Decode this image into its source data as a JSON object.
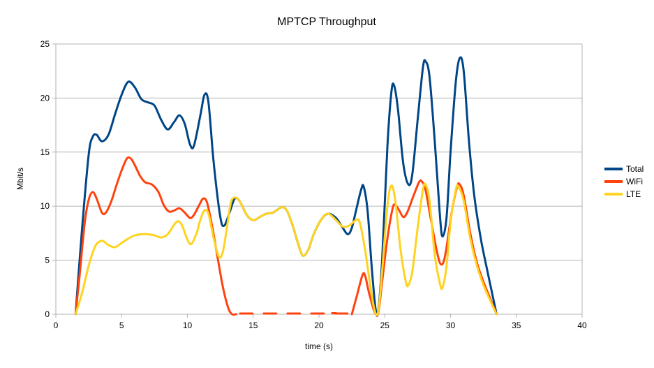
{
  "chart_data": {
    "type": "line",
    "title": "MPTCP Throughput",
    "xlabel": "time (s)",
    "ylabel": "Mbit/s",
    "xlim": [
      0,
      40
    ],
    "ylim": [
      0,
      25
    ],
    "xticks": [
      0,
      5,
      10,
      15,
      20,
      25,
      30,
      35,
      40
    ],
    "yticks": [
      0,
      5,
      10,
      15,
      20,
      25
    ],
    "grid": "horizontal",
    "legend_position": "right",
    "series": [
      {
        "name": "Total",
        "color": "#004586",
        "points": [
          [
            1.5,
            0
          ],
          [
            2.0,
            8
          ],
          [
            2.5,
            14.8
          ],
          [
            2.8,
            16.4
          ],
          [
            3.1,
            16.6
          ],
          [
            3.5,
            16.0
          ],
          [
            4.0,
            16.6
          ],
          [
            4.5,
            18.5
          ],
          [
            5.0,
            20.3
          ],
          [
            5.5,
            21.5
          ],
          [
            6.0,
            21.0
          ],
          [
            6.5,
            19.9
          ],
          [
            7.0,
            19.6
          ],
          [
            7.5,
            19.3
          ],
          [
            8.0,
            18.0
          ],
          [
            8.5,
            17.1
          ],
          [
            9.0,
            17.8
          ],
          [
            9.4,
            18.4
          ],
          [
            9.8,
            17.6
          ],
          [
            10.2,
            15.7
          ],
          [
            10.5,
            15.6
          ],
          [
            11.0,
            18.5
          ],
          [
            11.3,
            20.3
          ],
          [
            11.6,
            19.6
          ],
          [
            12.0,
            14.0
          ],
          [
            12.5,
            9.0
          ],
          [
            12.8,
            8.2
          ],
          [
            13.2,
            9.4
          ],
          [
            13.6,
            10.7
          ],
          [
            14.0,
            10.4
          ],
          [
            14.5,
            9.2
          ],
          [
            15.0,
            8.7
          ],
          [
            15.5,
            9.0
          ],
          [
            16.0,
            9.3
          ],
          [
            16.5,
            9.4
          ],
          [
            17.0,
            9.8
          ],
          [
            17.3,
            9.9
          ],
          [
            17.6,
            9.5
          ],
          [
            18.0,
            8.2
          ],
          [
            18.5,
            6.2
          ],
          [
            18.8,
            5.4
          ],
          [
            19.2,
            6.0
          ],
          [
            19.6,
            7.4
          ],
          [
            20.2,
            8.8
          ],
          [
            20.7,
            9.3
          ],
          [
            21.3,
            8.9
          ],
          [
            21.8,
            8.0
          ],
          [
            22.2,
            7.4
          ],
          [
            22.5,
            8.0
          ],
          [
            22.8,
            9.5
          ],
          [
            23.2,
            11.5
          ],
          [
            23.4,
            11.8
          ],
          [
            23.7,
            9.5
          ],
          [
            24.0,
            4.5
          ],
          [
            24.3,
            0.5
          ],
          [
            24.5,
            0.3
          ],
          [
            24.8,
            5.0
          ],
          [
            25.2,
            15.5
          ],
          [
            25.5,
            20.5
          ],
          [
            25.7,
            21.2
          ],
          [
            26.0,
            19.0
          ],
          [
            26.4,
            14.0
          ],
          [
            26.8,
            12.0
          ],
          [
            27.1,
            13.0
          ],
          [
            27.5,
            18.0
          ],
          [
            27.9,
            22.8
          ],
          [
            28.1,
            23.4
          ],
          [
            28.4,
            22.0
          ],
          [
            28.8,
            16.0
          ],
          [
            29.2,
            9.0
          ],
          [
            29.4,
            7.2
          ],
          [
            29.7,
            9.0
          ],
          [
            30.0,
            15.0
          ],
          [
            30.4,
            21.5
          ],
          [
            30.7,
            23.7
          ],
          [
            31.0,
            22.5
          ],
          [
            31.4,
            16.0
          ],
          [
            31.8,
            11.0
          ],
          [
            32.3,
            7.0
          ],
          [
            32.8,
            4.0
          ],
          [
            33.5,
            0
          ]
        ]
      },
      {
        "name": "WiFi",
        "color": "#FF420E",
        "points": [
          [
            1.5,
            0
          ],
          [
            1.8,
            3.5
          ],
          [
            2.2,
            8.5
          ],
          [
            2.5,
            10.6
          ],
          [
            2.8,
            11.3
          ],
          [
            3.1,
            10.7
          ],
          [
            3.5,
            9.4
          ],
          [
            3.8,
            9.4
          ],
          [
            4.2,
            10.4
          ],
          [
            4.6,
            11.9
          ],
          [
            5.0,
            13.3
          ],
          [
            5.4,
            14.4
          ],
          [
            5.7,
            14.4
          ],
          [
            6.0,
            13.8
          ],
          [
            6.4,
            12.8
          ],
          [
            6.8,
            12.2
          ],
          [
            7.3,
            12.0
          ],
          [
            7.8,
            11.3
          ],
          [
            8.2,
            10.1
          ],
          [
            8.6,
            9.5
          ],
          [
            9.0,
            9.6
          ],
          [
            9.4,
            9.8
          ],
          [
            9.8,
            9.4
          ],
          [
            10.2,
            8.9
          ],
          [
            10.5,
            9.2
          ],
          [
            10.9,
            10.1
          ],
          [
            11.2,
            10.7
          ],
          [
            11.5,
            10.3
          ],
          [
            11.9,
            8.0
          ],
          [
            12.3,
            5.2
          ],
          [
            12.7,
            2.5
          ],
          [
            13.1,
            0.6
          ],
          [
            13.4,
            0
          ],
          [
            13.7,
            0
          ],
          [
            14,
            null
          ],
          [
            21.0,
            0.1
          ],
          [
            21.3,
            0.1
          ],
          [
            21.6,
            null
          ],
          [
            22.5,
            0
          ],
          [
            22.9,
            1.8
          ],
          [
            23.3,
            3.6
          ],
          [
            23.5,
            3.6
          ],
          [
            23.8,
            2.0
          ],
          [
            24.2,
            0.3
          ],
          [
            24.5,
            0.1
          ],
          [
            24.8,
            3.0
          ],
          [
            25.2,
            7.0
          ],
          [
            25.6,
            9.8
          ],
          [
            25.8,
            10.1
          ],
          [
            26.1,
            9.6
          ],
          [
            26.4,
            9.0
          ],
          [
            26.7,
            9.4
          ],
          [
            27.2,
            11.0
          ],
          [
            27.6,
            12.2
          ],
          [
            27.8,
            12.3
          ],
          [
            28.1,
            11.5
          ],
          [
            28.5,
            8.8
          ],
          [
            29.0,
            5.6
          ],
          [
            29.3,
            4.6
          ],
          [
            29.6,
            5.5
          ],
          [
            30.1,
            9.5
          ],
          [
            30.5,
            11.8
          ],
          [
            30.7,
            12.0
          ],
          [
            31.0,
            11.0
          ],
          [
            31.5,
            7.5
          ],
          [
            32.0,
            4.8
          ],
          [
            32.5,
            3.0
          ],
          [
            33.0,
            1.5
          ],
          [
            33.5,
            0
          ]
        ]
      },
      {
        "name": "LTE",
        "color": "#FFD320",
        "points": [
          [
            1.5,
            0
          ],
          [
            2.0,
            2.0
          ],
          [
            2.5,
            4.5
          ],
          [
            3.0,
            6.3
          ],
          [
            3.5,
            6.8
          ],
          [
            4.0,
            6.4
          ],
          [
            4.5,
            6.2
          ],
          [
            5.0,
            6.6
          ],
          [
            5.5,
            7.0
          ],
          [
            6.0,
            7.3
          ],
          [
            6.5,
            7.4
          ],
          [
            7.0,
            7.4
          ],
          [
            7.5,
            7.3
          ],
          [
            8.0,
            7.1
          ],
          [
            8.5,
            7.4
          ],
          [
            9.0,
            8.3
          ],
          [
            9.3,
            8.6
          ],
          [
            9.6,
            8.2
          ],
          [
            10.0,
            6.9
          ],
          [
            10.3,
            6.5
          ],
          [
            10.7,
            7.5
          ],
          [
            11.0,
            8.8
          ],
          [
            11.3,
            9.6
          ],
          [
            11.6,
            9.3
          ],
          [
            12.0,
            7.0
          ],
          [
            12.4,
            5.3
          ],
          [
            12.7,
            5.8
          ],
          [
            13.0,
            8.0
          ],
          [
            13.3,
            10.3
          ],
          [
            13.6,
            10.8
          ],
          [
            14.0,
            10.4
          ],
          [
            14.5,
            9.2
          ],
          [
            15.0,
            8.7
          ],
          [
            15.5,
            9.0
          ],
          [
            16.0,
            9.3
          ],
          [
            16.5,
            9.4
          ],
          [
            17.0,
            9.8
          ],
          [
            17.3,
            9.9
          ],
          [
            17.6,
            9.5
          ],
          [
            18.0,
            8.2
          ],
          [
            18.5,
            6.2
          ],
          [
            18.8,
            5.4
          ],
          [
            19.2,
            6.0
          ],
          [
            19.6,
            7.4
          ],
          [
            20.2,
            8.8
          ],
          [
            20.7,
            9.3
          ],
          [
            21.3,
            8.7
          ],
          [
            21.8,
            8.1
          ],
          [
            22.3,
            8.2
          ],
          [
            22.8,
            8.7
          ],
          [
            23.1,
            8.5
          ],
          [
            23.5,
            6.0
          ],
          [
            23.8,
            3.5
          ],
          [
            24.2,
            0.5
          ],
          [
            24.5,
            0.2
          ],
          [
            24.8,
            4.0
          ],
          [
            25.2,
            10.0
          ],
          [
            25.5,
            11.9
          ],
          [
            25.8,
            10.5
          ],
          [
            26.2,
            6.0
          ],
          [
            26.6,
            3.0
          ],
          [
            26.8,
            2.7
          ],
          [
            27.1,
            4.0
          ],
          [
            27.5,
            8.0
          ],
          [
            27.9,
            11.5
          ],
          [
            28.1,
            12.0
          ],
          [
            28.4,
            10.5
          ],
          [
            28.8,
            5.5
          ],
          [
            29.2,
            2.8
          ],
          [
            29.4,
            2.5
          ],
          [
            29.7,
            4.5
          ],
          [
            30.0,
            8.5
          ],
          [
            30.4,
            11.5
          ],
          [
            30.6,
            11.8
          ],
          [
            31.0,
            10.5
          ],
          [
            31.5,
            7.0
          ],
          [
            32.0,
            4.5
          ],
          [
            32.5,
            2.7
          ],
          [
            33.0,
            1.3
          ],
          [
            33.5,
            0
          ]
        ]
      }
    ]
  }
}
